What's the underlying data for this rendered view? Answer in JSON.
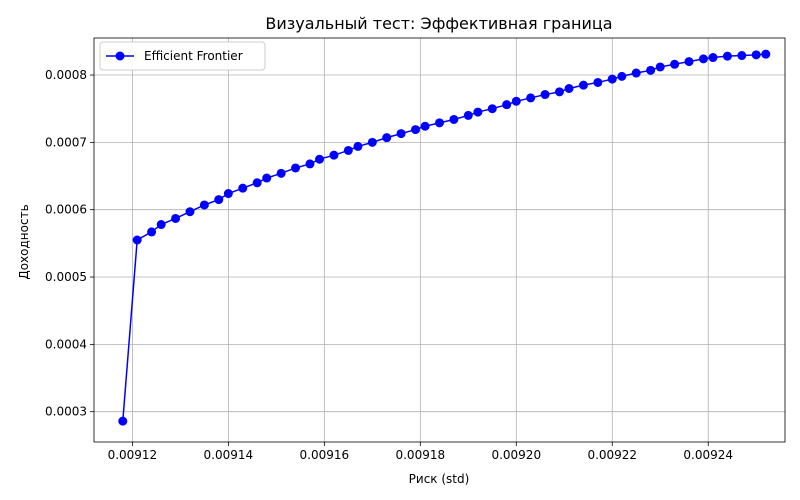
{
  "chart_data": {
    "type": "line",
    "title": "Визуальный тест: Эффективная граница",
    "xlabel": "Риск (std)",
    "ylabel": "Доходность",
    "xlim": [
      0.009112,
      0.009256
    ],
    "ylim": [
      0.000255,
      0.000855
    ],
    "xticks": [
      0.00912,
      0.00914,
      0.00916,
      0.00918,
      0.0092,
      0.00922,
      0.00924
    ],
    "xtick_labels": [
      "0.00912",
      "0.00914",
      "0.00916",
      "0.00918",
      "0.00920",
      "0.00922",
      "0.00924"
    ],
    "yticks": [
      0.0003,
      0.0004,
      0.0005,
      0.0006,
      0.0007,
      0.0008
    ],
    "ytick_labels": [
      "0.0003",
      "0.0004",
      "0.0005",
      "0.0006",
      "0.0007",
      "0.0008"
    ],
    "grid": true,
    "legend_position": "top-left",
    "series": [
      {
        "name": "Efficient Frontier",
        "color": "#0000ff",
        "marker": "circle",
        "x": [
          0.009118,
          0.009121,
          0.009124,
          0.009126,
          0.009129,
          0.009132,
          0.009135,
          0.009138,
          0.00914,
          0.009143,
          0.009146,
          0.009148,
          0.009151,
          0.009154,
          0.009157,
          0.009159,
          0.009162,
          0.009165,
          0.009167,
          0.00917,
          0.009173,
          0.009176,
          0.009179,
          0.009181,
          0.009184,
          0.009187,
          0.00919,
          0.009192,
          0.009195,
          0.009198,
          0.0092,
          0.009203,
          0.009206,
          0.009209,
          0.009211,
          0.009214,
          0.009217,
          0.00922,
          0.009222,
          0.009225,
          0.009228,
          0.00923,
          0.009233,
          0.009236,
          0.009239,
          0.009241,
          0.009244,
          0.009247,
          0.00925,
          0.009252
        ],
        "y": [
          0.000286,
          0.000555,
          0.000567,
          0.000578,
          0.000587,
          0.000597,
          0.000607,
          0.000615,
          0.000624,
          0.000632,
          0.00064,
          0.000647,
          0.000654,
          0.000662,
          0.000668,
          0.000675,
          0.000681,
          0.000688,
          0.000694,
          0.0007,
          0.000707,
          0.000713,
          0.000719,
          0.000724,
          0.000729,
          0.000734,
          0.00074,
          0.000745,
          0.00075,
          0.000756,
          0.000761,
          0.000766,
          0.000771,
          0.000775,
          0.00078,
          0.000785,
          0.000789,
          0.000794,
          0.000798,
          0.000803,
          0.000807,
          0.000812,
          0.000816,
          0.00082,
          0.000824,
          0.000826,
          0.000828,
          0.000829,
          0.00083,
          0.000831
        ]
      }
    ]
  }
}
